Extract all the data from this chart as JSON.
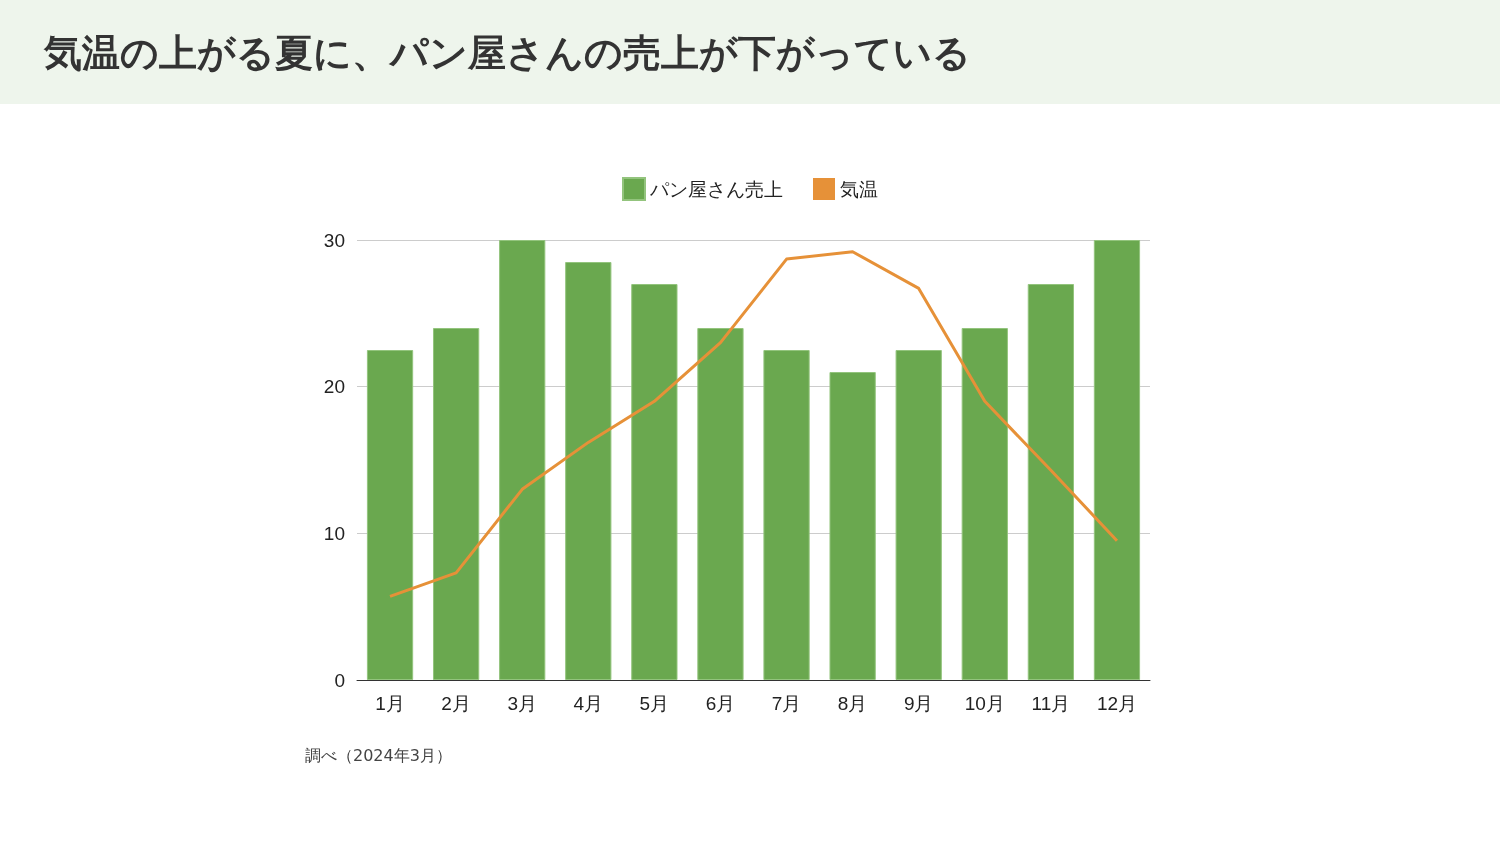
{
  "chart_data": {
    "type": "bar",
    "title": "気温の上がる夏に、パン屋さんの売上が下がっている",
    "categories": [
      "1月",
      "2月",
      "3月",
      "4月",
      "5月",
      "6月",
      "7月",
      "8月",
      "9月",
      "10月",
      "11月",
      "12月"
    ],
    "series": [
      {
        "name": "パン屋さん売上",
        "color": "#6aa84f",
        "values": [
          22.5,
          24,
          30,
          28.5,
          27,
          24,
          22.5,
          21,
          22.5,
          24,
          27,
          30
        ]
      },
      {
        "name": "気温",
        "type": "line",
        "color": "#e69138",
        "values": [
          5.7,
          7.3,
          13,
          16.2,
          19,
          23,
          28.7,
          29.2,
          26.7,
          19,
          14.3,
          9.5
        ]
      }
    ],
    "ylim": [
      0,
      30
    ],
    "yticks": [
      0,
      10,
      20,
      30
    ],
    "grid": "y",
    "legend": "top",
    "marker": "none",
    "annotations": [
      "調べ（2024年3月）"
    ]
  }
}
